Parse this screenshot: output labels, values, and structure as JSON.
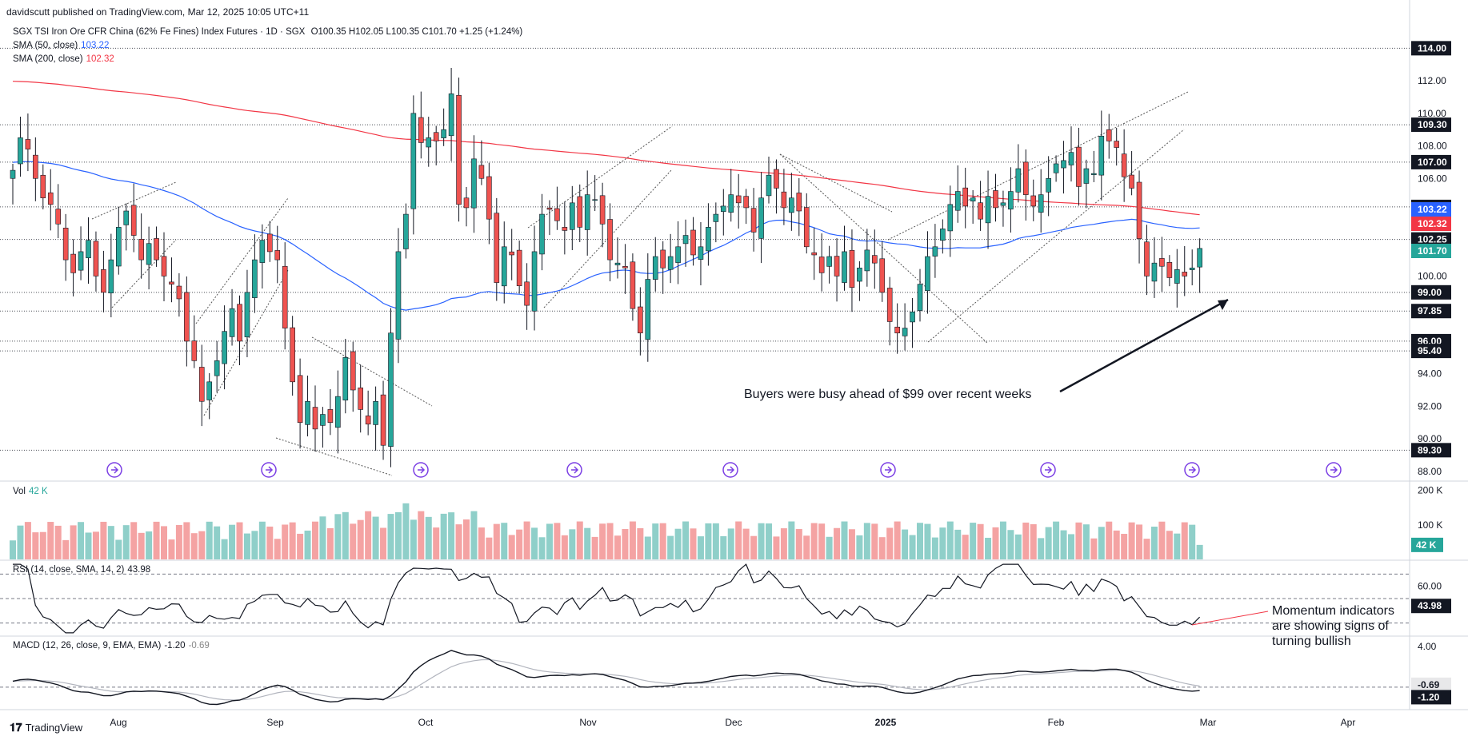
{
  "header": {
    "published": "davidscutt published on TradingView.com, Mar 12, 2025 10:05 UTC+11",
    "symbol_line": "SGX TSI Iron Ore CFR China (62% Fe Fines) Index Futures · 1D · SGX",
    "ohlc": "O100.35  H102.05  L100.35  C101.70  +1.25 (+1.24%)",
    "sma50": {
      "label": "SMA (50, close)",
      "value": "103.22",
      "color": "#2962ff"
    },
    "sma200": {
      "label": "SMA (200, close)",
      "value": "102.32",
      "color": "#f23645"
    }
  },
  "volume_pane": {
    "label": "Vol",
    "value": "42 K",
    "axis": [
      "200 K",
      "100 K"
    ],
    "last_label": "42 K"
  },
  "rsi_pane": {
    "label": "RSI (14, close, SMA, 14, 2)",
    "value": "43.98",
    "axis": [
      "60.00"
    ],
    "last_label": "43.98"
  },
  "macd_pane": {
    "label": "MACD (12, 26, close, 9, EMA, EMA)",
    "value": "-1.20",
    "signal": "-0.69",
    "axis": [
      "4.00"
    ],
    "last_labels": [
      "-0.69",
      "-1.20"
    ]
  },
  "annotations": {
    "buyers": "Buyers were busy ahead of $99 over recent weeks",
    "momentum": "Momentum indicators are showing signs of turning bullish"
  },
  "footer": {
    "brand": "TradingView"
  },
  "colors": {
    "up": "#26a69a",
    "down": "#ef5350",
    "vol_up": "#8fcfc9",
    "vol_down": "#f4a3a3",
    "sma50": "#2962ff",
    "sma200": "#f23645"
  },
  "chart_data": {
    "type": "candlestick",
    "price_axis_ticks": [
      "112.00",
      "110.00",
      "108.00",
      "106.00",
      "104.00",
      "102.00",
      "100.00",
      "98.00",
      "96.00",
      "94.00",
      "92.00",
      "90.00",
      "88.00"
    ],
    "x_tick_labels": [
      "Aug",
      "Sep",
      "Oct",
      "Nov",
      "Dec",
      "2025",
      "Feb",
      "Mar",
      "Apr"
    ],
    "horizontal_levels": [
      "114.00",
      "109.30",
      "107.00",
      "104.25",
      "102.25",
      "99.00",
      "97.85",
      "96.00",
      "95.40",
      "89.30"
    ],
    "last_values": {
      "sma50": "103.22",
      "sma200": "102.32",
      "close": "101.70"
    },
    "closes": [
      106.5,
      108.5,
      107.8,
      106.0,
      104.8,
      104.4,
      103.2,
      101.0,
      100.2,
      101.5,
      102.2,
      100.0,
      99.0,
      101.0,
      103.0,
      104.0,
      102.5,
      101.0,
      102.0,
      101.0,
      100.0,
      99.5,
      98.6,
      96.0,
      94.8,
      92.3,
      93.5,
      94.8,
      96.6,
      98.0,
      96.0,
      99.0,
      101.0,
      102.2,
      101.5,
      101.0,
      96.8,
      93.5,
      91.0,
      92.3,
      90.6,
      91.5,
      91.0,
      92.6,
      95.0,
      93.0,
      91.8,
      90.9,
      92.3,
      89.6,
      96.5,
      101.5,
      103.8,
      110.0,
      108.2,
      108.5,
      108.3,
      109.0,
      111.2,
      104.4,
      104.2,
      107.2,
      106.0,
      103.5,
      99.6,
      101.8,
      101.3,
      99.4,
      98.2,
      101.5,
      103.8,
      104.1,
      103.4,
      102.8,
      104.5,
      103.0,
      105.0,
      104.7,
      103.2,
      101.0,
      100.8,
      100.5,
      98.0,
      96.5,
      99.8,
      101.2,
      100.5,
      101.2,
      101.8,
      102.5,
      101.3,
      101.8,
      103.0,
      103.8,
      104.3,
      105.0,
      104.5,
      104.2,
      102.7,
      104.8,
      106.2,
      105.4,
      104.2,
      104.8,
      104.0,
      101.8,
      101.3,
      100.2,
      101.2,
      100.0,
      101.5,
      99.3,
      100.5,
      101.6,
      100.8,
      99.0,
      97.2,
      96.5,
      96.8,
      97.8,
      99.5,
      101.2,
      101.8,
      102.9,
      104.4,
      105.2,
      104.3,
      104.8,
      103.5,
      104.9,
      104.2,
      104.5,
      105.2,
      106.6,
      105.0,
      104.3,
      105.0,
      106.0,
      106.9,
      107.1,
      107.6,
      105.5,
      106.6,
      106.3,
      108.6,
      108.3,
      107.9,
      106.1,
      105.4,
      102.3,
      100.0,
      100.8,
      100.6,
      99.9,
      100.4,
      100.0,
      100.5,
      101.7
    ],
    "sma50_last": 103.22,
    "sma200_last": 102.32,
    "volume_last": "42 K",
    "rsi_last": 43.98,
    "macd_last": -1.2,
    "macd_signal_last": -0.69
  }
}
